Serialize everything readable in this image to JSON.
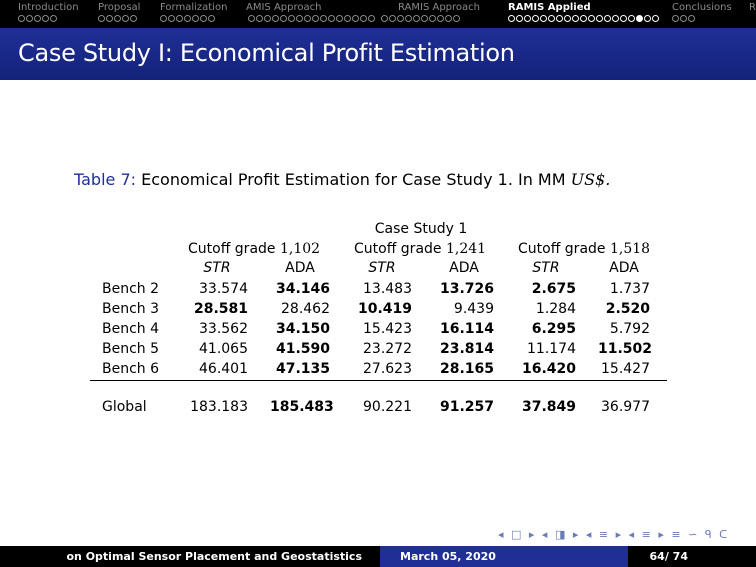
{
  "nav": {
    "sections": [
      {
        "label": "Introduction",
        "dots": 5,
        "filled": -1
      },
      {
        "label": "Proposal",
        "dots": 5,
        "filled": -1
      },
      {
        "label": "Formalization",
        "dots": 7,
        "filled": -1
      },
      {
        "label": "AMIS Approach",
        "dots": 26,
        "filled": -1
      },
      {
        "label": "RAMIS Approach",
        "dots": 0,
        "filled": -1
      },
      {
        "label": "RAMIS Applied",
        "dots": 19,
        "filled": 16
      },
      {
        "label": "Conclusions",
        "dots": 3,
        "filled": -1
      },
      {
        "label": "R",
        "dots": 0,
        "filled": -1
      }
    ],
    "active_index": 5
  },
  "slide": {
    "title": "Case Study I: Economical Profit Estimation"
  },
  "caption": {
    "label": "Table 7:",
    "text": "Economical Profit Estimation for Case Study 1. In MM",
    "unit": "US$."
  },
  "table": {
    "group_header": "Case Study 1",
    "cutoffs": [
      {
        "label": "Cutoff grade",
        "value": "1,102"
      },
      {
        "label": "Cutoff grade",
        "value": "1,241"
      },
      {
        "label": "Cutoff grade",
        "value": "1,518"
      }
    ],
    "subheaders": [
      "STR",
      "ADA",
      "STR",
      "ADA",
      "STR",
      "ADA"
    ],
    "rows": [
      {
        "label": "Bench 2",
        "values": [
          "33.574",
          "34.146",
          "13.483",
          "13.726",
          "2.675",
          "1.737"
        ],
        "bold": [
          1,
          3,
          4
        ]
      },
      {
        "label": "Bench 3",
        "values": [
          "28.581",
          "28.462",
          "10.419",
          "9.439",
          "1.284",
          "2.520"
        ],
        "bold": [
          0,
          2,
          5
        ]
      },
      {
        "label": "Bench 4",
        "values": [
          "33.562",
          "34.150",
          "15.423",
          "16.114",
          "6.295",
          "5.792"
        ],
        "bold": [
          1,
          3,
          4
        ]
      },
      {
        "label": "Bench 5",
        "values": [
          "41.065",
          "41.590",
          "23.272",
          "23.814",
          "11.174",
          "11.502"
        ],
        "bold": [
          1,
          3,
          5
        ]
      },
      {
        "label": "Bench 6",
        "values": [
          "46.401",
          "47.135",
          "27.623",
          "28.165",
          "16.420",
          "15.427"
        ],
        "bold": [
          1,
          3,
          4
        ]
      }
    ],
    "global": {
      "label": "Global",
      "values": [
        "183.183",
        "185.483",
        "90.221",
        "91.257",
        "37.849",
        "36.977"
      ],
      "bold": [
        1,
        3,
        4
      ]
    }
  },
  "footer": {
    "left": "on Optimal Sensor Placement and Geostatistics",
    "date": "March 05, 2020",
    "page": "64/ 74"
  },
  "beamer_nav_symbols": "◂ □ ▸ ◂ ◨ ▸ ◂ ≡ ▸ ◂ ≡ ▸ ≡ ∽ ᑫ ᑕ"
}
